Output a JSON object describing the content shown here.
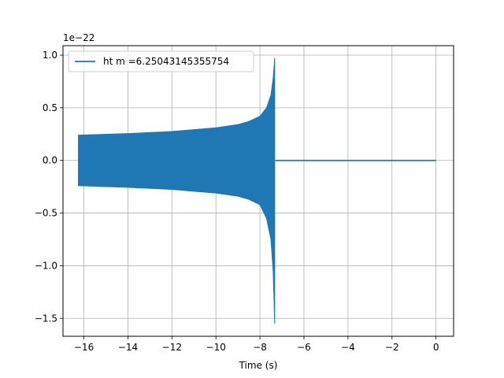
{
  "chart_data": {
    "type": "line",
    "title": "",
    "xlabel": "Time (s)",
    "ylabel": "",
    "y_scale_note": "1e−22",
    "xlim": [
      -16.95,
      0.8
    ],
    "ylim": [
      -1.67,
      1.09
    ],
    "x_ticks": [
      -16,
      -14,
      -12,
      -10,
      -8,
      -6,
      -4,
      -2,
      0
    ],
    "x_tick_labels": [
      "−16",
      "−14",
      "−12",
      "−10",
      "−8",
      "−6",
      "−4",
      "−2",
      "0"
    ],
    "y_ticks": [
      1.0,
      0.5,
      0.0,
      -0.5,
      -1.0,
      -1.5
    ],
    "y_tick_labels": [
      "1.0",
      "0.5",
      "0.0",
      "−0.5",
      "−1.0",
      "−1.5"
    ],
    "grid": true,
    "legend_position": "top-left",
    "series": [
      {
        "name": "ht m =6.25043145355754",
        "color": "#1f77b4",
        "envelope_upper": {
          "x": [
            -16.25,
            -14,
            -12,
            -10,
            -9,
            -8.5,
            -8,
            -7.7,
            -7.5,
            -7.4,
            -7.33
          ],
          "y": [
            0.24,
            0.255,
            0.275,
            0.31,
            0.34,
            0.37,
            0.42,
            0.5,
            0.62,
            0.78,
            0.97
          ]
        },
        "envelope_lower": {
          "x": [
            -16.25,
            -14,
            -12,
            -10,
            -9,
            -8.5,
            -8,
            -7.7,
            -7.5,
            -7.4,
            -7.33
          ],
          "y": [
            -0.24,
            -0.255,
            -0.275,
            -0.31,
            -0.34,
            -0.37,
            -0.42,
            -0.55,
            -0.75,
            -1.05,
            -1.55
          ]
        },
        "flat_segment": {
          "x": [
            -7.3,
            0
          ],
          "y": [
            0,
            0
          ]
        }
      }
    ]
  }
}
